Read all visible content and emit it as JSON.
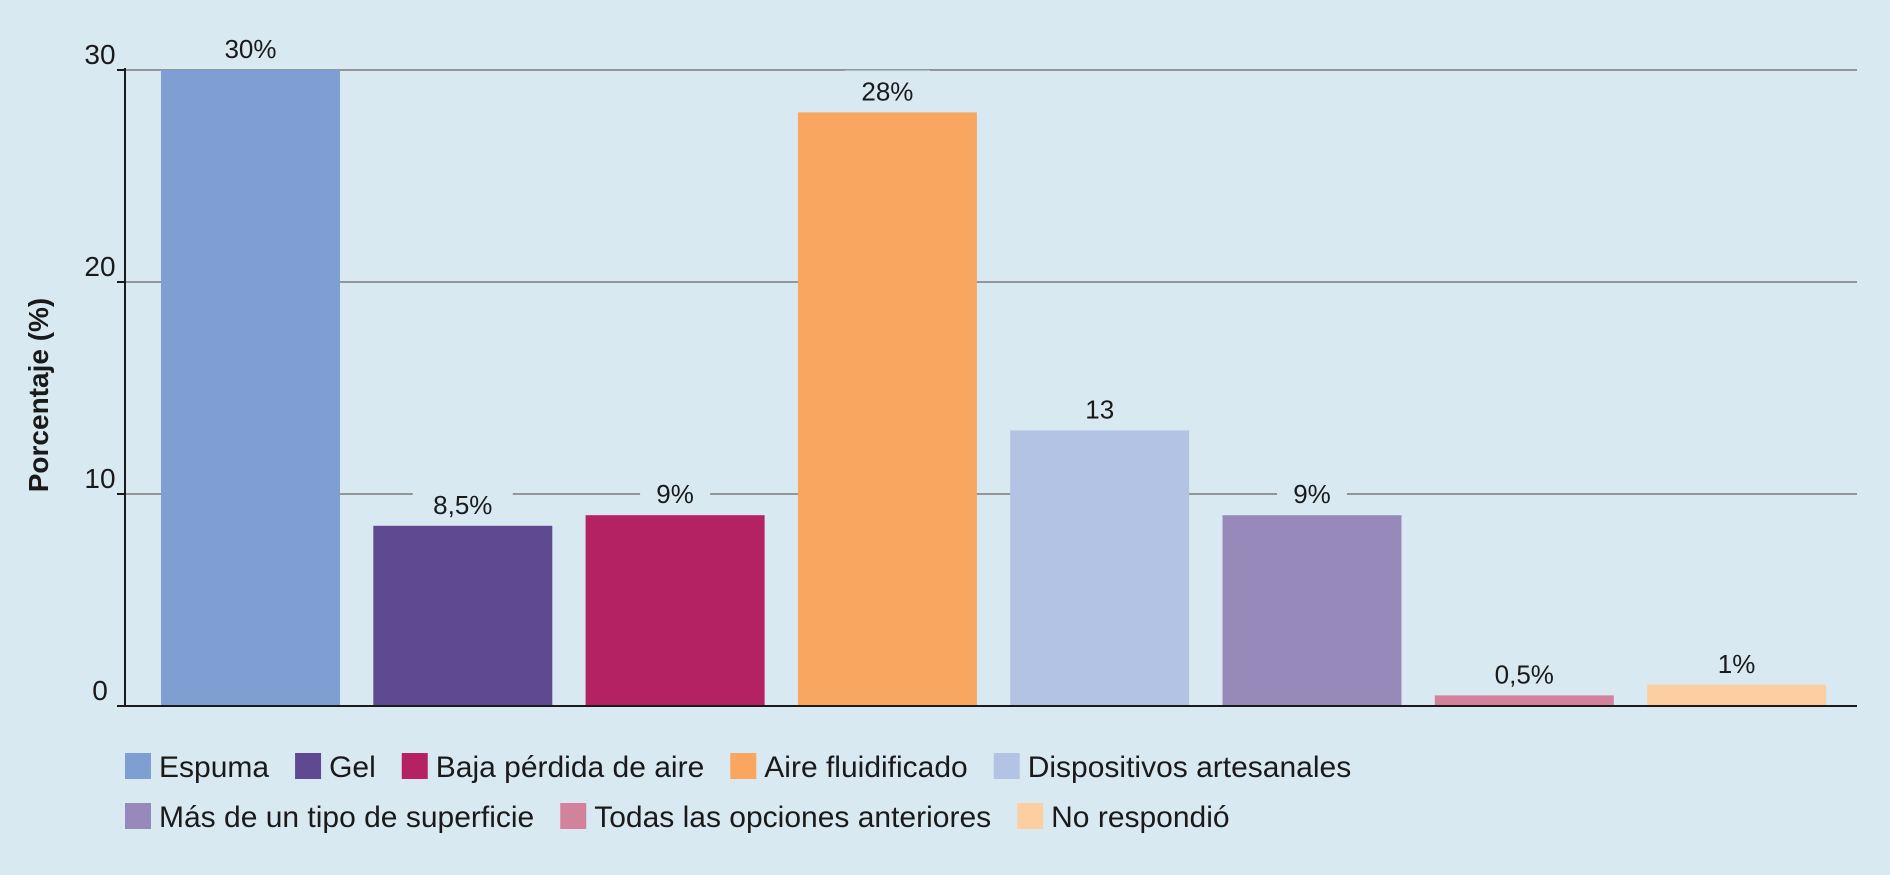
{
  "chart_data": {
    "type": "bar",
    "title": "",
    "xlabel": "",
    "ylabel": "Porcentaje (%)",
    "ylim": [
      0,
      30
    ],
    "yticks": [
      0,
      10,
      20,
      30
    ],
    "grid": true,
    "legend_position": "bottom",
    "categories": [
      "Espuma",
      "Gel",
      "Baja pérdida de aire",
      "Aire fluidificado",
      "Dispositivos artesanales",
      "Más de un tipo de superficie",
      "Todas las opciones anteriores",
      "No respondió"
    ],
    "values": [
      30,
      8.5,
      9,
      28,
      13,
      9,
      0.5,
      1
    ],
    "data_labels": [
      "30%",
      "8,5%",
      "9%",
      "28%",
      "13",
      "9%",
      "0,5%",
      "1%"
    ],
    "colors": [
      "#7f9fd3",
      "#5f4a92",
      "#b42263",
      "#f9a660",
      "#b3c3e4",
      "#978abb",
      "#d2829a",
      "#fdcfa0"
    ]
  },
  "style": {
    "background": "#d9e9f1",
    "grid_color": "#7a7a7a",
    "axis_color": "#1a1a1a"
  }
}
